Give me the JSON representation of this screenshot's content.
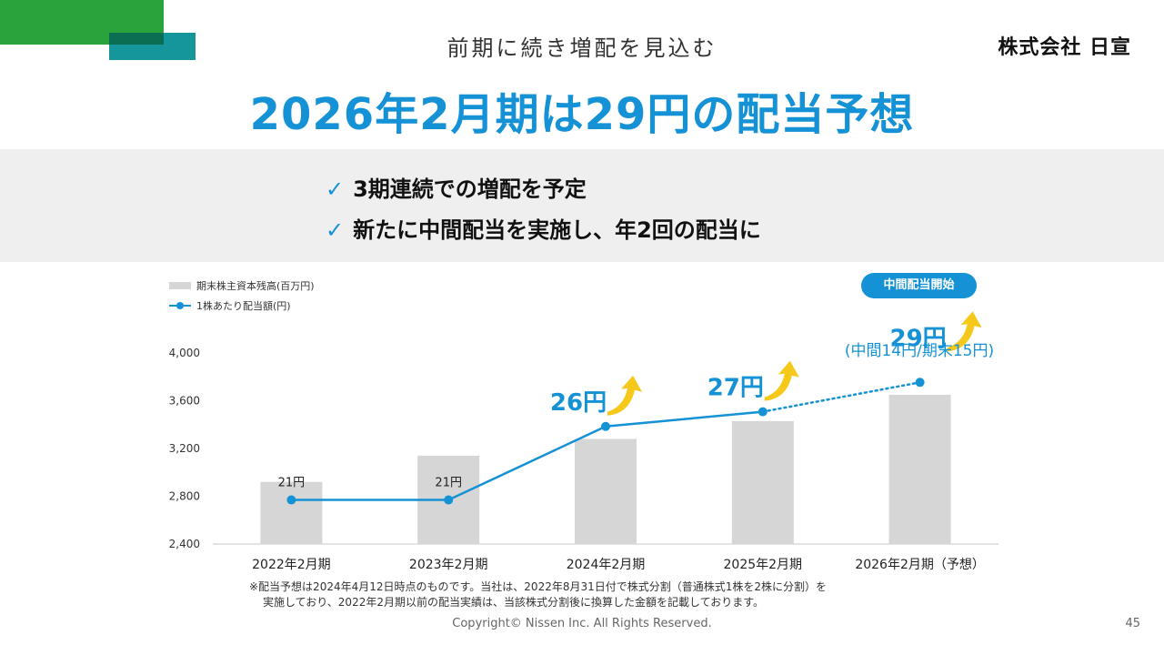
{
  "header": {
    "subtitle": "前期に続き増配を見込む",
    "logo": "株式会社 日宣",
    "title": "2026年2月期は29円の配当予想"
  },
  "highlights": [
    "3期連続での増配を予定",
    "新たに中間配当を実施し、年2回の配当に"
  ],
  "legend": {
    "bar_label": "期末株主資本残高(百万円)",
    "line_label": "1株あたり配当額(円)"
  },
  "badge": "中間配当開始",
  "forecast_breakdown": "(中間14円/期末15円)",
  "footnote": {
    "line1": "※配当予想は2024年4月12日時点のものです。当社は、2022年8月31日付で株式分割（普通株式1株を2株に分割）を",
    "line2": "実施しており、2022年2月期以前の配当実績は、当該株式分割後に換算した金額を記載しております。"
  },
  "footer": {
    "copyright": "Copyright© Nissen Inc. All Rights Reserved.",
    "page": "45"
  },
  "colors": {
    "accent": "#1592d6",
    "bar": "#d6d6d6",
    "arrow": "#f6c81a",
    "green": "#2aa33c",
    "teal": "#14969a"
  },
  "chart_data": {
    "type": "bar",
    "categories": [
      "2022年2月期",
      "2023年2月期",
      "2024年2月期",
      "2025年2月期",
      "2026年2月期（予想）"
    ],
    "series": [
      {
        "name": "期末株主資本残高(百万円)",
        "type": "bar",
        "values": [
          2920,
          3140,
          3280,
          3430,
          3650
        ]
      },
      {
        "name": "1株あたり配当額(円)",
        "type": "line",
        "values": [
          21,
          21,
          26,
          27,
          29
        ],
        "forecast_last": true
      }
    ],
    "data_labels": [
      "21円",
      "21円",
      "26円",
      "27円",
      "29円"
    ],
    "increase_arrow": [
      false,
      false,
      true,
      true,
      true
    ],
    "y_axis": {
      "min": 2400,
      "max": 4000,
      "ticks": [
        2400,
        2800,
        3200,
        3600,
        4000
      ],
      "tick_labels": [
        "2,400",
        "2,800",
        "3,200",
        "3,600",
        "4,000"
      ]
    },
    "xlabel": "",
    "ylabel": ""
  }
}
